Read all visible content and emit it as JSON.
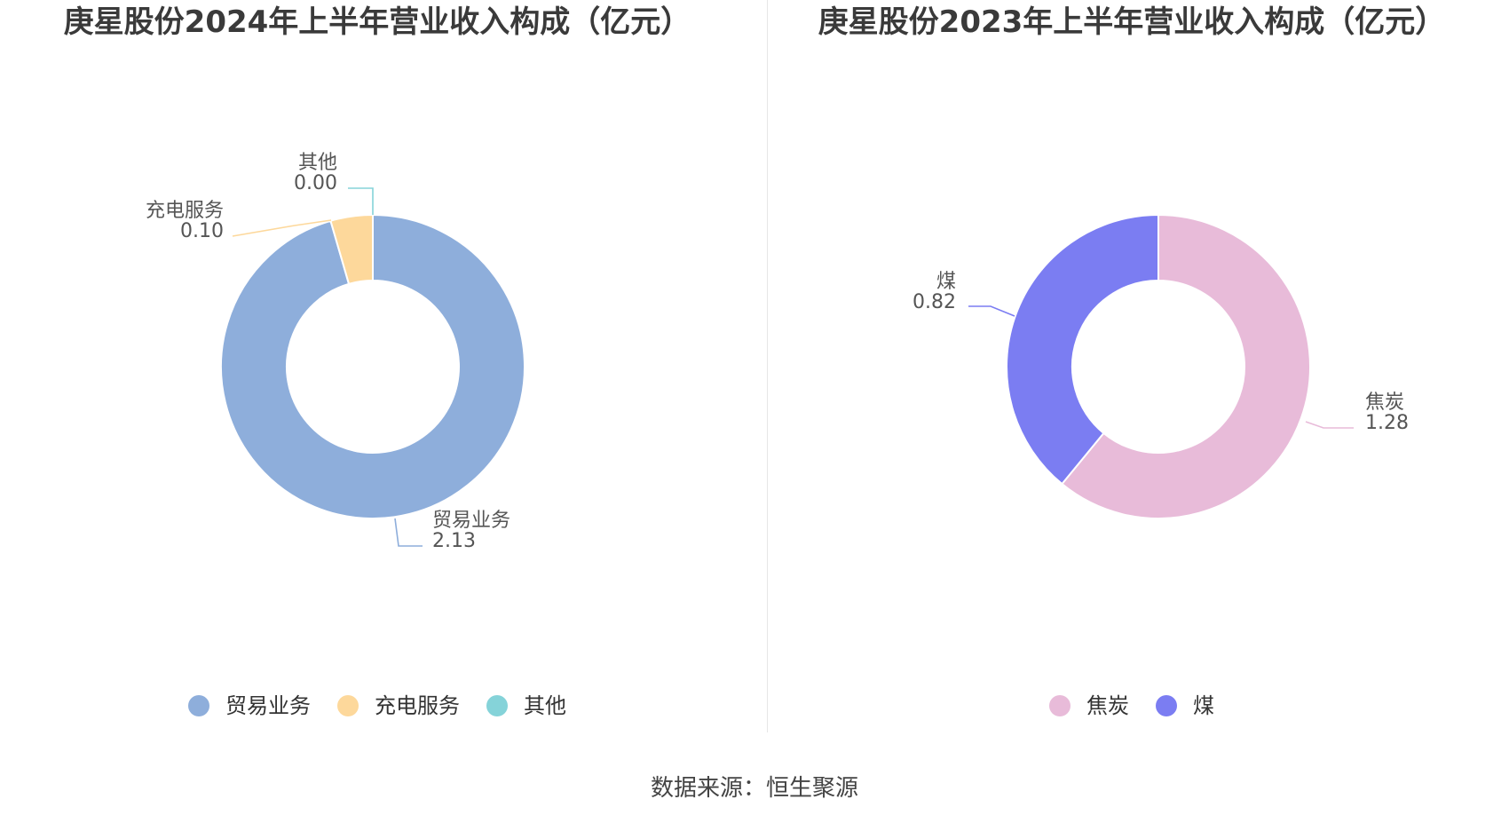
{
  "chart_data": [
    {
      "type": "pie",
      "variant": "donut",
      "title": "庚星股份2024年上半年营业收入构成（亿元）",
      "slices": [
        {
          "label": "贸易业务",
          "value": 2.13,
          "value_label": "2.13",
          "color": "#8eaedb"
        },
        {
          "label": "充电服务",
          "value": 0.1,
          "value_label": "0.10",
          "color": "#fdd89b"
        },
        {
          "label": "其他",
          "value": 0.0,
          "value_label": "0.00",
          "color": "#85d3d9"
        }
      ],
      "legend": {
        "placement": "bottom",
        "items": [
          "贸易业务",
          "充电服务",
          "其他"
        ]
      }
    },
    {
      "type": "pie",
      "variant": "donut",
      "title": "庚星股份2023年上半年营业收入构成（亿元）",
      "slices": [
        {
          "label": "焦炭",
          "value": 1.28,
          "value_label": "1.28",
          "color": "#e8bbd9"
        },
        {
          "label": "煤",
          "value": 0.82,
          "value_label": "0.82",
          "color": "#7b7df2"
        }
      ],
      "legend": {
        "placement": "bottom",
        "items": [
          "焦炭",
          "煤"
        ]
      }
    }
  ],
  "footer": {
    "source": "数据来源：恒生聚源"
  }
}
